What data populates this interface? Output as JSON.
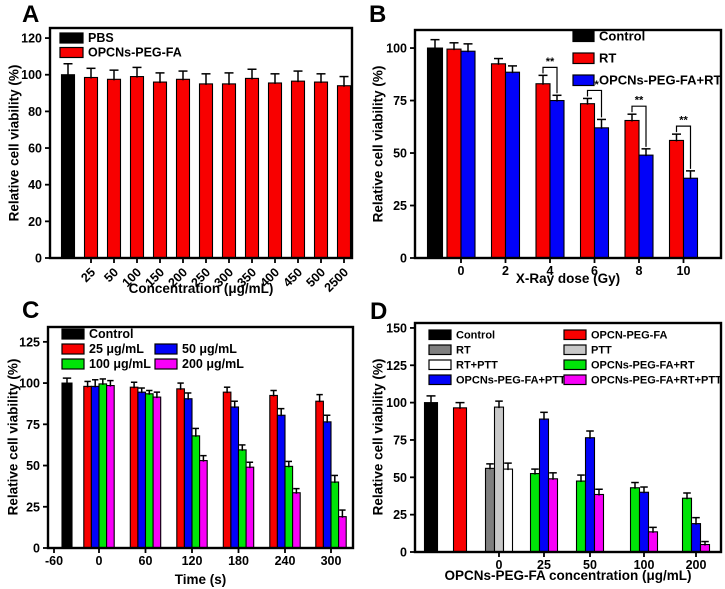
{
  "figure_background": "#ffffff",
  "colors": {
    "black": "#000000",
    "red": "#f80000",
    "blue": "#0202f8",
    "green": "#00e408",
    "magenta": "#f800f8",
    "gray": "#7f7f7f",
    "lightgray": "#c8c8c8",
    "white": "#ffffff",
    "axis": "#000000"
  },
  "chart_data": [
    {
      "type": "bar",
      "panel_label": "A",
      "xlabel": "Concentration (μg/mL)",
      "ylabel": "Relative cell viability (%)",
      "ylim": [
        0,
        125.5
      ],
      "yticks": [
        0,
        20,
        40,
        60,
        80,
        100,
        120
      ],
      "grid": false,
      "legend": {
        "position": "top-left",
        "entries": [
          {
            "color": "black",
            "label": "PBS",
            "col": 0,
            "row": 0
          },
          {
            "color": "red",
            "label": "OPCNs-PEG-FA",
            "col": 0,
            "row": 1
          }
        ]
      },
      "groups": [
        {
          "tick": "",
          "bars": [
            {
              "series": "PBS",
              "color": "black",
              "value": 100,
              "err": 6
            }
          ]
        },
        {
          "tick": "25",
          "bars": [
            {
              "series": "OPCNs-PEG-FA",
              "color": "red",
              "value": 98.5,
              "err": 5
            }
          ]
        },
        {
          "tick": "50",
          "bars": [
            {
              "series": "OPCNs-PEG-FA",
              "color": "red",
              "value": 97.5,
              "err": 5
            }
          ]
        },
        {
          "tick": "100",
          "bars": [
            {
              "series": "OPCNs-PEG-FA",
              "color": "red",
              "value": 99,
              "err": 5
            }
          ]
        },
        {
          "tick": "150",
          "bars": [
            {
              "series": "OPCNs-PEG-FA",
              "color": "red",
              "value": 96,
              "err": 5
            }
          ]
        },
        {
          "tick": "200",
          "bars": [
            {
              "series": "OPCNs-PEG-FA",
              "color": "red",
              "value": 97.5,
              "err": 4.5
            }
          ]
        },
        {
          "tick": "250",
          "bars": [
            {
              "series": "OPCNs-PEG-FA",
              "color": "red",
              "value": 95,
              "err": 5.5
            }
          ]
        },
        {
          "tick": "300",
          "bars": [
            {
              "series": "OPCNs-PEG-FA",
              "color": "red",
              "value": 95,
              "err": 6
            }
          ]
        },
        {
          "tick": "350",
          "bars": [
            {
              "series": "OPCNs-PEG-FA",
              "color": "red",
              "value": 98,
              "err": 5
            }
          ]
        },
        {
          "tick": "400",
          "bars": [
            {
              "series": "OPCNs-PEG-FA",
              "color": "red",
              "value": 95.5,
              "err": 5
            }
          ]
        },
        {
          "tick": "450",
          "bars": [
            {
              "series": "OPCNs-PEG-FA",
              "color": "red",
              "value": 96.5,
              "err": 5.5
            }
          ]
        },
        {
          "tick": "500",
          "bars": [
            {
              "series": "OPCNs-PEG-FA",
              "color": "red",
              "value": 96,
              "err": 4.5
            }
          ]
        },
        {
          "tick": "2500",
          "bars": [
            {
              "series": "OPCNs-PEG-FA",
              "color": "red",
              "value": 94,
              "err": 5
            }
          ]
        }
      ]
    },
    {
      "type": "bar",
      "panel_label": "B",
      "xlabel": "X-Ray dose (Gy)",
      "ylabel": "Relative cell viability (%)",
      "ylim": [
        0,
        108.6
      ],
      "yticks": [
        0,
        25,
        50,
        75,
        100
      ],
      "grid": false,
      "legend": {
        "position": "top-right",
        "entries": [
          {
            "color": "black",
            "label": "Control",
            "col": 0,
            "row": 0
          },
          {
            "color": "red",
            "label": "RT",
            "col": 0,
            "row": 1
          },
          {
            "color": "blue",
            "label": "OPCNs-PEG-FA+RT",
            "col": 0,
            "row": 2
          }
        ]
      },
      "groups": [
        {
          "tick": "",
          "bars": [
            {
              "series": "Control",
              "color": "black",
              "value": 100,
              "err": 4
            }
          ]
        },
        {
          "tick": "0",
          "bars": [
            {
              "series": "RT",
              "color": "red",
              "value": 99.5,
              "err": 3
            },
            {
              "series": "OPCNs-PEG-FA+RT",
              "color": "blue",
              "value": 98.5,
              "err": 3.5
            }
          ]
        },
        {
          "tick": "2",
          "bars": [
            {
              "series": "RT",
              "color": "red",
              "value": 92.5,
              "err": 2.5
            },
            {
              "series": "OPCNs-PEG-FA+RT",
              "color": "blue",
              "value": 88.5,
              "err": 3
            }
          ]
        },
        {
          "tick": "4",
          "sig": "**",
          "bars": [
            {
              "series": "RT",
              "color": "red",
              "value": 83,
              "err": 4
            },
            {
              "series": "OPCNs-PEG-FA+RT",
              "color": "blue",
              "value": 75,
              "err": 2.5
            }
          ]
        },
        {
          "tick": "6",
          "sig": "**",
          "bars": [
            {
              "series": "RT",
              "color": "red",
              "value": 73.5,
              "err": 2.5
            },
            {
              "series": "OPCNs-PEG-FA+RT",
              "color": "blue",
              "value": 62,
              "err": 4
            }
          ]
        },
        {
          "tick": "8",
          "sig": "**",
          "bars": [
            {
              "series": "RT",
              "color": "red",
              "value": 65.5,
              "err": 3
            },
            {
              "series": "OPCNs-PEG-FA+RT",
              "color": "blue",
              "value": 49,
              "err": 3
            }
          ]
        },
        {
          "tick": "10",
          "sig": "**",
          "bars": [
            {
              "series": "RT",
              "color": "red",
              "value": 56,
              "err": 3
            },
            {
              "series": "OPCNs-PEG-FA+RT",
              "color": "blue",
              "value": 38,
              "err": 3.5
            }
          ]
        }
      ]
    },
    {
      "type": "bar",
      "panel_label": "C",
      "xlabel": "Time (s)",
      "ylabel": "Relative cell viability (%)",
      "ylim": [
        0,
        134
      ],
      "yticks": [
        0,
        25,
        50,
        75,
        100,
        125
      ],
      "grid": false,
      "extra_xticks": [
        "-60"
      ],
      "legend": {
        "position": "top-left-two-column",
        "entries": [
          {
            "color": "black",
            "label": "Control",
            "col": 0,
            "row": 0
          },
          {
            "color": "red",
            "label": "25 μg/mL",
            "col": 0,
            "row": 1
          },
          {
            "color": "green",
            "label": "100 μg/mL",
            "col": 0,
            "row": 2
          },
          {
            "color": "blue",
            "label": "50 μg/mL",
            "col": 1,
            "row": 1
          },
          {
            "color": "magenta",
            "label": "200 μg/mL",
            "col": 1,
            "row": 2
          }
        ]
      },
      "groups": [
        {
          "tick": "",
          "bars": [
            {
              "series": "Control",
              "color": "black",
              "value": 100,
              "err": 3
            }
          ]
        },
        {
          "tick": "0",
          "bars": [
            {
              "series": "25 μg/mL",
              "color": "red",
              "value": 98,
              "err": 3
            },
            {
              "series": "50 μg/mL",
              "color": "blue",
              "value": 98,
              "err": 4
            },
            {
              "series": "100 μg/mL",
              "color": "green",
              "value": 99.5,
              "err": 3
            },
            {
              "series": "200 μg/mL",
              "color": "magenta",
              "value": 98.5,
              "err": 3
            }
          ]
        },
        {
          "tick": "60",
          "bars": [
            {
              "series": "25 μg/mL",
              "color": "red",
              "value": 97.5,
              "err": 3
            },
            {
              "series": "50 μg/mL",
              "color": "blue",
              "value": 94.5,
              "err": 2.5
            },
            {
              "series": "100 μg/mL",
              "color": "green",
              "value": 93.5,
              "err": 2
            },
            {
              "series": "200 μg/mL",
              "color": "magenta",
              "value": 91.5,
              "err": 3
            }
          ]
        },
        {
          "tick": "120",
          "bars": [
            {
              "series": "25 μg/mL",
              "color": "red",
              "value": 96.5,
              "err": 3.5
            },
            {
              "series": "50 μg/mL",
              "color": "blue",
              "value": 90.5,
              "err": 3.5
            },
            {
              "series": "100 μg/mL",
              "color": "green",
              "value": 68,
              "err": 4.5
            },
            {
              "series": "200 μg/mL",
              "color": "magenta",
              "value": 53,
              "err": 3
            }
          ]
        },
        {
          "tick": "180",
          "bars": [
            {
              "series": "25 μg/mL",
              "color": "red",
              "value": 94.5,
              "err": 3
            },
            {
              "series": "50 μg/mL",
              "color": "blue",
              "value": 85.5,
              "err": 3.5
            },
            {
              "series": "100 μg/mL",
              "color": "green",
              "value": 59.5,
              "err": 3
            },
            {
              "series": "200 μg/mL",
              "color": "magenta",
              "value": 49,
              "err": 3
            }
          ]
        },
        {
          "tick": "240",
          "bars": [
            {
              "series": "25 μg/mL",
              "color": "red",
              "value": 92.5,
              "err": 3
            },
            {
              "series": "50 μg/mL",
              "color": "blue",
              "value": 80.5,
              "err": 4
            },
            {
              "series": "100 μg/mL",
              "color": "green",
              "value": 49.5,
              "err": 3
            },
            {
              "series": "200 μg/mL",
              "color": "magenta",
              "value": 33.5,
              "err": 2.5
            }
          ]
        },
        {
          "tick": "300",
          "bars": [
            {
              "series": "25 μg/mL",
              "color": "red",
              "value": 89,
              "err": 4
            },
            {
              "series": "50 μg/mL",
              "color": "blue",
              "value": 76.5,
              "err": 4
            },
            {
              "series": "100 μg/mL",
              "color": "green",
              "value": 40,
              "err": 4
            },
            {
              "series": "200 μg/mL",
              "color": "magenta",
              "value": 19,
              "err": 4
            }
          ]
        }
      ]
    },
    {
      "type": "bar",
      "panel_label": "D",
      "xlabel": "OPCNs-PEG-FA concentration (μg/mL)",
      "ylabel": "Relative cell viability (%)",
      "ylim": [
        0,
        153.3
      ],
      "yticks": [
        0,
        25,
        50,
        75,
        100,
        125,
        150
      ],
      "grid": false,
      "legend": {
        "position": "top-two-column",
        "entries": [
          {
            "color": "black",
            "label": "Control",
            "col": 0,
            "row": 0
          },
          {
            "color": "gray",
            "label": "RT",
            "col": 0,
            "row": 1
          },
          {
            "color": "white",
            "label": "RT+PTT",
            "col": 0,
            "row": 2
          },
          {
            "color": "blue",
            "label": "OPCNs-PEG-FA+PTT",
            "col": 0,
            "row": 3
          },
          {
            "color": "red",
            "label": "OPCN-PEG-FA",
            "col": 1,
            "row": 0
          },
          {
            "color": "lightgray",
            "label": "PTT",
            "col": 1,
            "row": 1
          },
          {
            "color": "green",
            "label": "OPCNs-PEG-FA+RT",
            "col": 1,
            "row": 2
          },
          {
            "color": "magenta",
            "label": "OPCNs-PEG-FA+RT+PTT",
            "col": 1,
            "row": 3
          }
        ]
      },
      "groups": [
        {
          "tick": "",
          "bars": [
            {
              "series": "Control",
              "color": "black",
              "value": 100,
              "err": 4.5
            }
          ]
        },
        {
          "tick": "",
          "bars": [
            {
              "series": "OPCN-PEG-FA",
              "color": "red",
              "value": 96.5,
              "err": 3.5
            }
          ]
        },
        {
          "tick": "0",
          "bars": [
            {
              "series": "RT",
              "color": "gray",
              "value": 56,
              "err": 3
            },
            {
              "series": "PTT",
              "color": "lightgray",
              "value": 97,
              "err": 4
            },
            {
              "series": "RT+PTT",
              "color": "white",
              "value": 55.5,
              "err": 4
            }
          ]
        },
        {
          "tick": "25",
          "bars": [
            {
              "series": "OPCNs-PEG-FA+RT",
              "color": "green",
              "value": 52.5,
              "err": 3
            },
            {
              "series": "OPCNs-PEG-FA+PTT",
              "color": "blue",
              "value": 89,
              "err": 4.5
            },
            {
              "series": "OPCNs-PEG-FA+RT+PTT",
              "color": "magenta",
              "value": 49,
              "err": 4
            }
          ]
        },
        {
          "tick": "50",
          "bars": [
            {
              "series": "OPCNs-PEG-FA+RT",
              "color": "green",
              "value": 47.5,
              "err": 4
            },
            {
              "series": "OPCNs-PEG-FA+PTT",
              "color": "blue",
              "value": 76.5,
              "err": 4.5
            },
            {
              "series": "OPCNs-PEG-FA+RT+PTT",
              "color": "magenta",
              "value": 38.5,
              "err": 3.5
            }
          ]
        },
        {
          "tick": "100",
          "bars": [
            {
              "series": "OPCNs-PEG-FA+RT",
              "color": "green",
              "value": 43,
              "err": 3.5
            },
            {
              "series": "OPCNs-PEG-FA+PTT",
              "color": "blue",
              "value": 40,
              "err": 3.5
            },
            {
              "series": "OPCNs-PEG-FA+RT+PTT",
              "color": "magenta",
              "value": 13.5,
              "err": 3
            }
          ]
        },
        {
          "tick": "200",
          "bars": [
            {
              "series": "OPCNs-PEG-FA+RT",
              "color": "green",
              "value": 36,
              "err": 3.5
            },
            {
              "series": "OPCNs-PEG-FA+PTT",
              "color": "blue",
              "value": 19,
              "err": 4
            },
            {
              "series": "OPCNs-PEG-FA+RT+PTT",
              "color": "magenta",
              "value": 5,
              "err": 2
            }
          ]
        }
      ]
    }
  ]
}
